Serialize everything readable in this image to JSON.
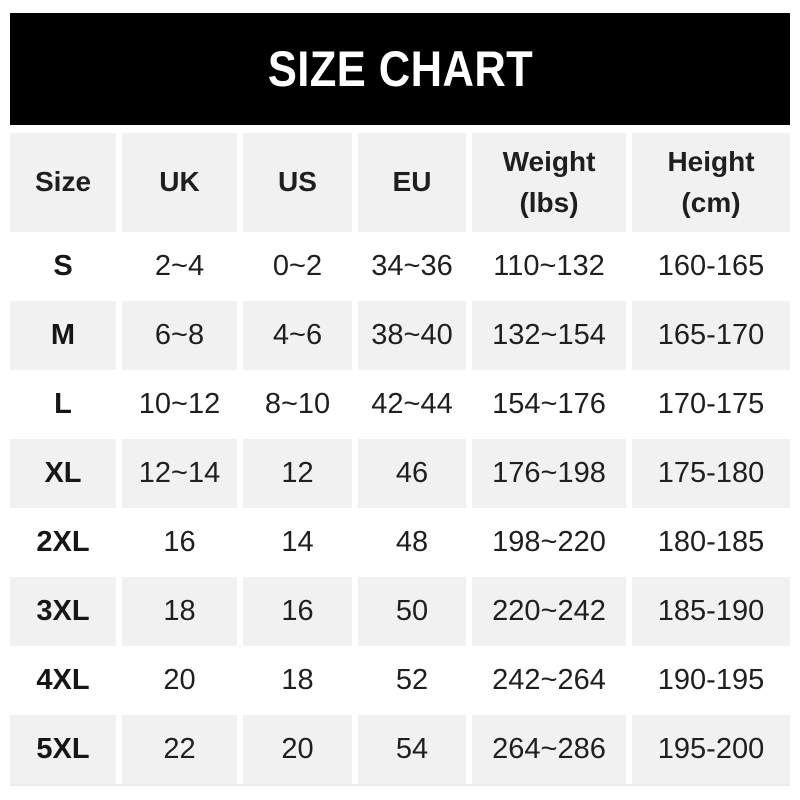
{
  "banner": {
    "title": "SIZE CHART"
  },
  "table": {
    "display_columns": [
      "Size",
      "UK",
      "US",
      "EU",
      "Weight\n(lbs)",
      "Height\n(cm)"
    ]
  },
  "chart_data": {
    "type": "table",
    "title": "SIZE CHART",
    "columns": [
      "Size",
      "UK",
      "US",
      "EU",
      "Weight (lbs)",
      "Height (cm)"
    ],
    "rows": [
      [
        "S",
        "2~4",
        "0~2",
        "34~36",
        "110~132",
        "160-165"
      ],
      [
        "M",
        "6~8",
        "4~6",
        "38~40",
        "132~154",
        "165-170"
      ],
      [
        "L",
        "10~12",
        "8~10",
        "42~44",
        "154~176",
        "170-175"
      ],
      [
        "XL",
        "12~14",
        "12",
        "46",
        "176~198",
        "175-180"
      ],
      [
        "2XL",
        "16",
        "14",
        "48",
        "198~220",
        "180-185"
      ],
      [
        "3XL",
        "18",
        "16",
        "50",
        "220~242",
        "185-190"
      ],
      [
        "4XL",
        "20",
        "18",
        "52",
        "242~264",
        "190-195"
      ],
      [
        "5XL",
        "22",
        "20",
        "54",
        "264~286",
        "195-200"
      ]
    ],
    "layout": {
      "striping": "header and even data rows (M, XL, 3XL, 5XL) have light gray background",
      "range_separator_weight": "~",
      "range_separator_height": "-"
    }
  },
  "colors": {
    "banner_bg": "#000000",
    "banner_text": "#ffffff",
    "row_alt_bg": "#f1f1f1",
    "header_bg": "#f1f1f1",
    "text": "#1f1f1f",
    "page_bg": "#ffffff"
  }
}
